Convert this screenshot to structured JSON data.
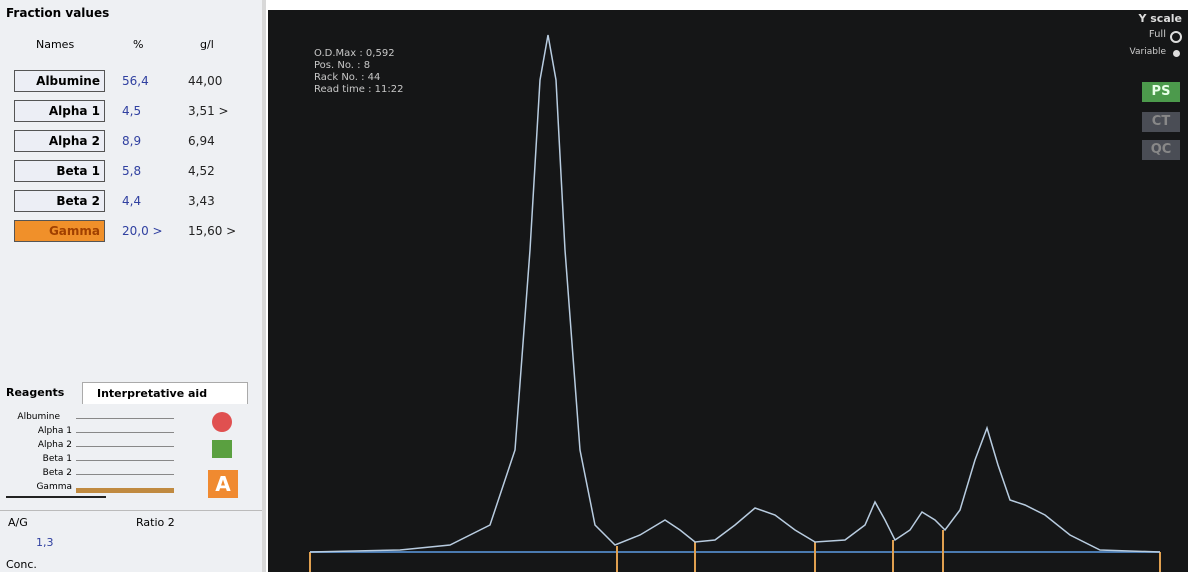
{
  "fraction_panel": {
    "title": "Fraction values",
    "headers": [
      "Names",
      "%",
      "g/l"
    ],
    "rows": [
      [
        "Albumine",
        "56,4",
        "44,00"
      ],
      [
        "Alpha 1",
        "4,5",
        "3,51 >"
      ],
      [
        "Alpha 2",
        "8,9",
        "6,94"
      ],
      [
        "Beta 1",
        "5,8",
        "4,52"
      ],
      [
        "Beta 2",
        "4,4",
        "3,43"
      ],
      [
        "Gamma",
        "20,0 >",
        "15,60 >"
      ]
    ]
  },
  "tabs": [
    "Reagents",
    "Interpretative aid"
  ],
  "interpretative": {
    "labels": [
      "Albumine",
      "Alpha 1",
      "Alpha 2",
      "Beta 1",
      "Beta 2",
      "Gamma"
    ],
    "button": "A"
  },
  "ratio": {
    "label": "A/G",
    "ratio_label": "Ratio 2",
    "value": "1,3",
    "conc": "Conc."
  },
  "graph": {
    "info": [
      "O.D.Max : 0,592",
      "Pos. No. : 8",
      "Rack No. : 44",
      "Read time : 11:22"
    ],
    "y_scale": {
      "title": "Y scale",
      "options": [
        "Full",
        "Variable"
      ]
    },
    "buttons": [
      "PS",
      "CT",
      "QC"
    ]
  }
}
